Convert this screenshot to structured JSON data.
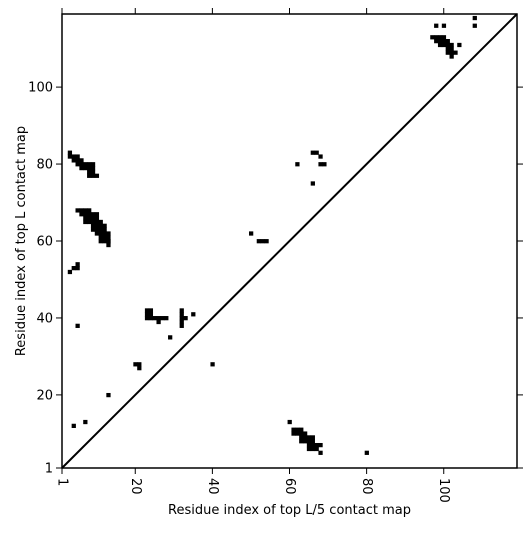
{
  "chart_data": {
    "type": "heatmap",
    "title": "",
    "xlabel": "Residue index of top L/5 contact map",
    "ylabel": "Residue index of top L contact map",
    "xlim": [
      1,
      119
    ],
    "ylim": [
      1,
      119
    ],
    "x_ticks": [
      1,
      20,
      40,
      60,
      80,
      100
    ],
    "y_ticks": [
      1,
      20,
      40,
      60,
      80,
      100
    ],
    "diagonal": true,
    "grid": false,
    "cell_color": "#000000",
    "upper_contacts": [
      [
        3,
        52
      ],
      [
        4,
        53
      ],
      [
        5,
        53
      ],
      [
        5,
        54
      ],
      [
        5,
        38
      ],
      [
        4,
        12
      ],
      [
        7,
        13
      ],
      [
        13,
        20
      ],
      [
        13,
        59
      ],
      [
        13,
        60
      ],
      [
        3,
        83
      ],
      [
        3,
        82
      ],
      [
        4,
        82
      ],
      [
        5,
        82
      ],
      [
        4,
        81
      ],
      [
        5,
        81
      ],
      [
        6,
        81
      ],
      [
        5,
        80
      ],
      [
        6,
        80
      ],
      [
        7,
        80
      ],
      [
        8,
        80
      ],
      [
        9,
        80
      ],
      [
        6,
        79
      ],
      [
        7,
        79
      ],
      [
        8,
        79
      ],
      [
        9,
        79
      ],
      [
        8,
        78
      ],
      [
        9,
        78
      ],
      [
        8,
        77
      ],
      [
        9,
        77
      ],
      [
        10,
        77
      ],
      [
        5,
        68
      ],
      [
        6,
        68
      ],
      [
        7,
        68
      ],
      [
        8,
        68
      ],
      [
        6,
        67
      ],
      [
        7,
        67
      ],
      [
        8,
        67
      ],
      [
        9,
        67
      ],
      [
        10,
        67
      ],
      [
        7,
        66
      ],
      [
        8,
        66
      ],
      [
        9,
        66
      ],
      [
        10,
        66
      ],
      [
        7,
        65
      ],
      [
        8,
        65
      ],
      [
        9,
        65
      ],
      [
        10,
        65
      ],
      [
        11,
        65
      ],
      [
        9,
        64
      ],
      [
        10,
        64
      ],
      [
        11,
        64
      ],
      [
        12,
        64
      ],
      [
        9,
        63
      ],
      [
        10,
        63
      ],
      [
        11,
        63
      ],
      [
        12,
        63
      ],
      [
        10,
        62
      ],
      [
        11,
        62
      ],
      [
        12,
        62
      ],
      [
        13,
        62
      ],
      [
        11,
        61
      ],
      [
        12,
        61
      ],
      [
        13,
        61
      ],
      [
        11,
        60
      ],
      [
        12,
        60
      ],
      [
        13,
        60
      ],
      [
        20,
        28
      ],
      [
        21,
        28
      ],
      [
        21,
        27
      ],
      [
        23,
        42
      ],
      [
        24,
        42
      ],
      [
        23,
        41
      ],
      [
        24,
        41
      ],
      [
        23,
        40
      ],
      [
        24,
        40
      ],
      [
        25,
        40
      ],
      [
        26,
        40
      ],
      [
        27,
        40
      ],
      [
        28,
        40
      ],
      [
        26,
        39
      ],
      [
        29,
        35
      ],
      [
        32,
        42
      ],
      [
        32,
        41
      ],
      [
        32,
        40
      ],
      [
        33,
        40
      ],
      [
        32,
        39
      ],
      [
        32,
        38
      ],
      [
        35,
        41
      ],
      [
        40,
        28
      ],
      [
        50,
        62
      ],
      [
        52,
        60
      ],
      [
        53,
        60
      ],
      [
        54,
        60
      ],
      [
        62,
        80
      ],
      [
        66,
        83
      ],
      [
        67,
        83
      ],
      [
        68,
        82
      ],
      [
        68,
        80
      ],
      [
        69,
        80
      ],
      [
        66,
        75
      ],
      [
        98,
        116
      ],
      [
        100,
        116
      ],
      [
        108,
        118
      ],
      [
        108,
        116
      ],
      [
        97,
        113
      ],
      [
        98,
        113
      ],
      [
        99,
        113
      ],
      [
        100,
        113
      ],
      [
        98,
        112
      ],
      [
        99,
        112
      ],
      [
        100,
        112
      ],
      [
        101,
        112
      ],
      [
        99,
        111
      ],
      [
        100,
        111
      ],
      [
        101,
        111
      ],
      [
        102,
        111
      ],
      [
        104,
        111
      ],
      [
        101,
        110
      ],
      [
        102,
        110
      ],
      [
        101,
        109
      ],
      [
        102,
        109
      ],
      [
        103,
        109
      ],
      [
        102,
        108
      ]
    ],
    "lower_contacts": [
      [
        60,
        13
      ],
      [
        61,
        11
      ],
      [
        62,
        11
      ],
      [
        63,
        11
      ],
      [
        61,
        10
      ],
      [
        62,
        10
      ],
      [
        63,
        10
      ],
      [
        64,
        10
      ],
      [
        63,
        9
      ],
      [
        64,
        9
      ],
      [
        65,
        9
      ],
      [
        66,
        9
      ],
      [
        63,
        8
      ],
      [
        64,
        8
      ],
      [
        65,
        8
      ],
      [
        66,
        8
      ],
      [
        67,
        7
      ],
      [
        65,
        7
      ],
      [
        66,
        7
      ],
      [
        65,
        6
      ],
      [
        66,
        6
      ],
      [
        67,
        6
      ],
      [
        68,
        7
      ],
      [
        68,
        5
      ],
      [
        80,
        5
      ]
    ]
  }
}
